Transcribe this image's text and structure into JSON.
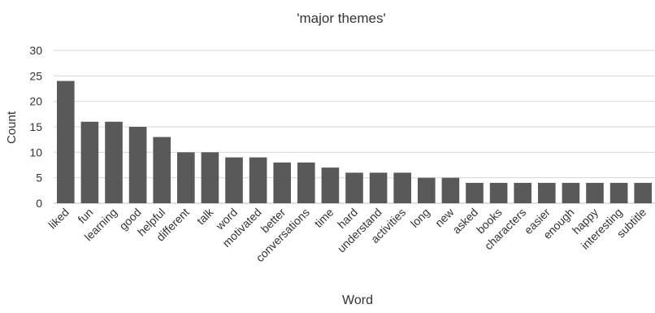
{
  "chart_data": {
    "type": "bar",
    "title": "'major themes'",
    "xlabel": "Word",
    "ylabel": "Count",
    "ylim": [
      0,
      30
    ],
    "yticks": [
      0,
      5,
      10,
      15,
      20,
      25,
      30
    ],
    "grid": true,
    "legend": "none",
    "bar_color": "#595959",
    "categories": [
      "liked",
      "fun",
      "learning",
      "good",
      "helpful",
      "different",
      "talk",
      "word",
      "motivated",
      "better",
      "conversations",
      "time",
      "hard",
      "understand",
      "activities",
      "long",
      "new",
      "asked",
      "books",
      "characters",
      "easier",
      "enough",
      "happy",
      "interesting",
      "subtitle"
    ],
    "values": [
      24,
      16,
      16,
      15,
      13,
      10,
      10,
      9,
      9,
      8,
      8,
      7,
      6,
      6,
      6,
      5,
      5,
      4,
      4,
      4,
      4,
      4,
      4,
      4,
      4
    ]
  }
}
